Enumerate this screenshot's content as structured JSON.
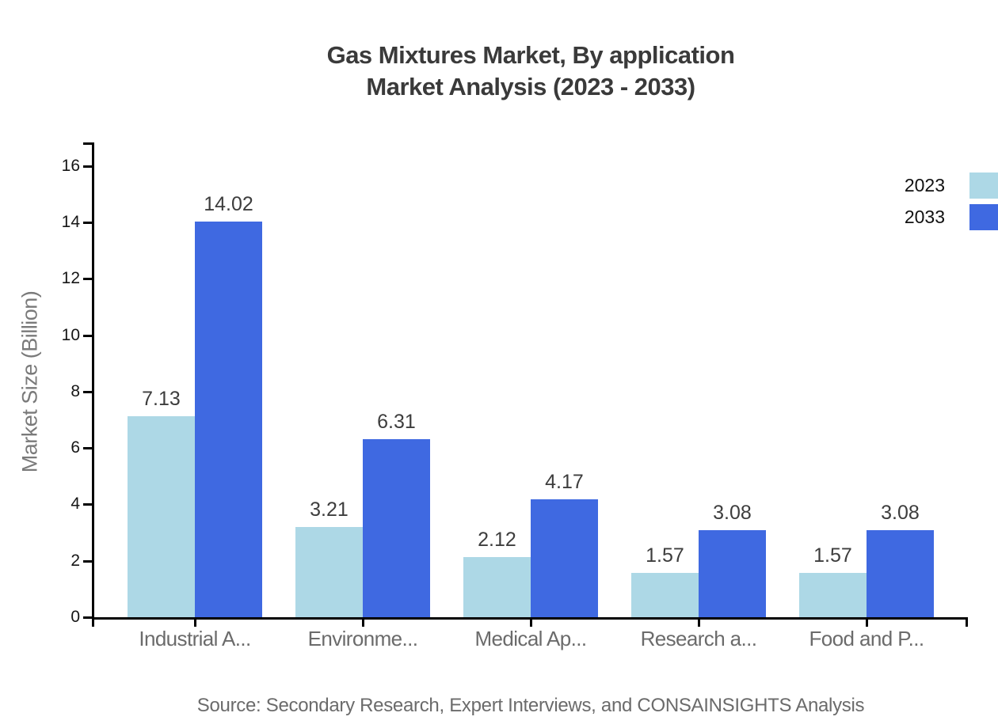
{
  "title": {
    "line1": "Gas Mixtures Market, By application",
    "line2": "Market Analysis (2023 - 2033)"
  },
  "source": "Source: Secondary Research, Expert Interviews, and CONSAINSIGHTS Analysis",
  "chart_data": {
    "type": "bar",
    "title": "Gas Mixtures Market, By application Market Analysis (2023 - 2033)",
    "categories": [
      "Industrial A...",
      "Environme...",
      "Medical Ap...",
      "Research a...",
      "Food and P..."
    ],
    "series": [
      {
        "name": "2023",
        "color": "#ADD8E6",
        "values": [
          7.13,
          3.21,
          2.12,
          1.57,
          1.57
        ]
      },
      {
        "name": "2033",
        "color": "#3F69E1",
        "values": [
          14.02,
          6.31,
          4.17,
          3.08,
          3.08
        ]
      }
    ],
    "xlabel": "",
    "ylabel": "Market Size (Billion)",
    "yticks": [
      0,
      2,
      4,
      6,
      8,
      10,
      12,
      14,
      16
    ],
    "ylim": [
      0,
      16.84
    ],
    "grid": false,
    "value_labels": true,
    "legend_position": "top-right"
  }
}
